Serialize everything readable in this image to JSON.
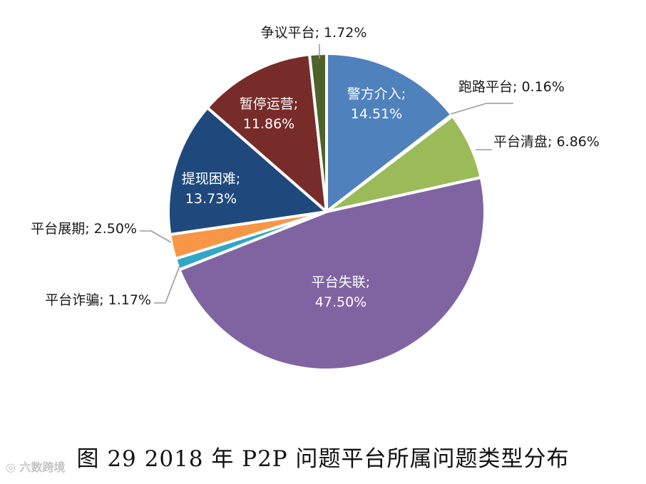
{
  "chart_data": {
    "type": "pie",
    "title": "图 29   2018 年 P2P 问题平台所属问题类型分布",
    "slices": [
      {
        "name": "警方介入",
        "value": 14.51,
        "label": "14.51%",
        "color": "#4f81bd",
        "placement": "inside"
      },
      {
        "name": "跑路平台",
        "value": 0.16,
        "label": "0.16%",
        "color": "#4bacc6",
        "placement": "outside"
      },
      {
        "name": "平台清盘",
        "value": 6.86,
        "label": "6.86%",
        "color": "#9bbb59",
        "placement": "outside"
      },
      {
        "name": "平台失联",
        "value": 47.5,
        "label": "47.50%",
        "color": "#8064a2",
        "placement": "inside"
      },
      {
        "name": "平台诈骗",
        "value": 1.17,
        "label": "1.17%",
        "color": "#31a7c7",
        "placement": "outside"
      },
      {
        "name": "平台展期",
        "value": 2.5,
        "label": "2.50%",
        "color": "#f79646",
        "placement": "outside"
      },
      {
        "name": "提现困难",
        "value": 13.73,
        "label": "13.73%",
        "color": "#1f497d",
        "placement": "inside"
      },
      {
        "name": "暂停运营",
        "value": 11.86,
        "label": "11.86%",
        "color": "#772c2a",
        "placement": "inside"
      },
      {
        "name": "争议平台",
        "value": 1.72,
        "label": "1.72%",
        "color": "#4f6228",
        "placement": "outside"
      }
    ],
    "start_angle_deg": 0,
    "direction": "clockwise"
  },
  "watermark": "六数跨境"
}
